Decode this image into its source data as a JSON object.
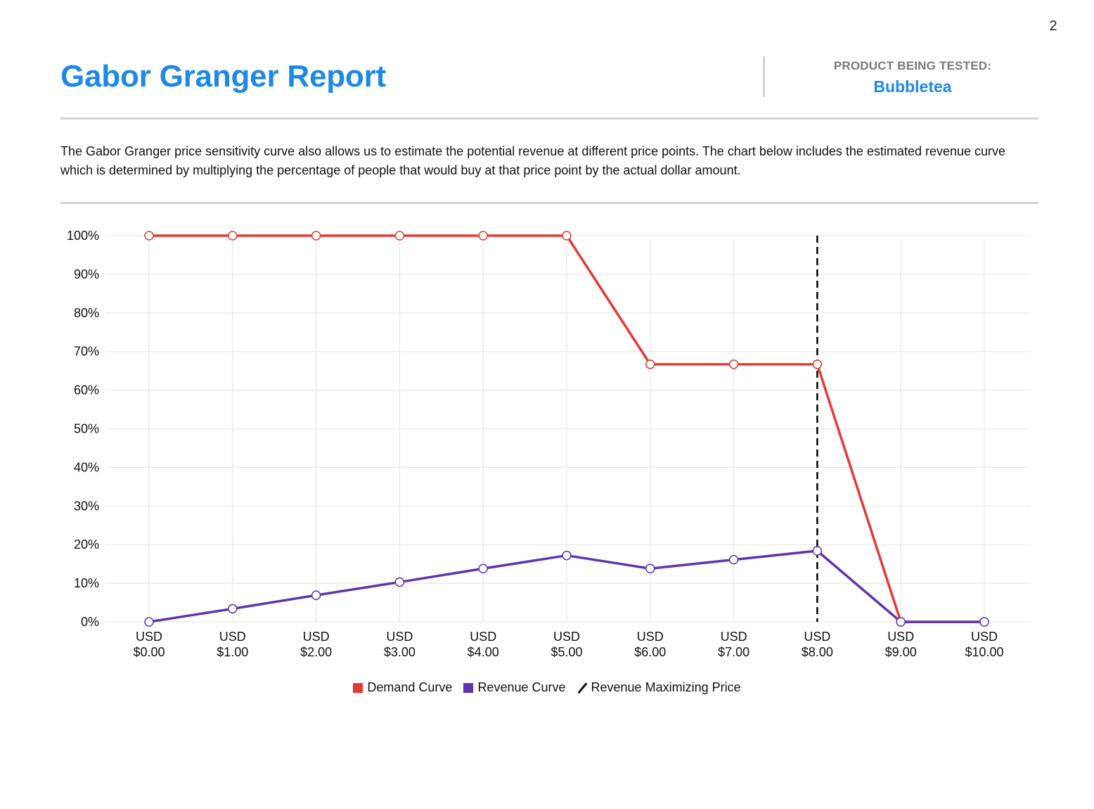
{
  "page": {
    "number": "2"
  },
  "header": {
    "title": "Gabor Granger Report",
    "product_label": "PRODUCT BEING TESTED:",
    "product_name": "Bubbletea"
  },
  "description": "The Gabor Granger price sensitivity curve also allows us to estimate the potential revenue at different price points. The chart below includes the estimated revenue curve which is determined by multiplying the percentage of people that would buy at that price point by the actual dollar amount.",
  "colors": {
    "accent": "#1e88e5",
    "demand": "#e53935",
    "revenue": "#5e35b1",
    "marker": "#000000",
    "grid": "#e6e6e6"
  },
  "chart_data": {
    "type": "line",
    "title": "",
    "xlabel": "",
    "ylabel": "",
    "categories": [
      [
        "USD",
        "$0.00"
      ],
      [
        "USD",
        "$1.00"
      ],
      [
        "USD",
        "$2.00"
      ],
      [
        "USD",
        "$3.00"
      ],
      [
        "USD",
        "$4.00"
      ],
      [
        "USD",
        "$5.00"
      ],
      [
        "USD",
        "$6.00"
      ],
      [
        "USD",
        "$7.00"
      ],
      [
        "USD",
        "$8.00"
      ],
      [
        "USD",
        "$9.00"
      ],
      [
        "USD",
        "$10.00"
      ]
    ],
    "y_ticks": [
      "0%",
      "10%",
      "20%",
      "30%",
      "40%",
      "50%",
      "60%",
      "70%",
      "80%",
      "90%",
      "100%"
    ],
    "ylim": [
      0,
      100
    ],
    "grid": true,
    "legend_position": "bottom-center",
    "series": [
      {
        "name": "Demand Curve",
        "color": "#e53935",
        "values": [
          100,
          100,
          100,
          100,
          100,
          100,
          66.7,
          66.7,
          66.7,
          0,
          0
        ]
      },
      {
        "name": "Revenue Curve",
        "color": "#5e35b1",
        "values": [
          0,
          3.4,
          6.9,
          10.3,
          13.8,
          17.2,
          13.8,
          16.1,
          18.4,
          0,
          0
        ]
      }
    ],
    "reference_line": {
      "name": "Revenue Maximizing Price",
      "x_index": 8,
      "color": "#000000",
      "style": "dashed"
    }
  }
}
